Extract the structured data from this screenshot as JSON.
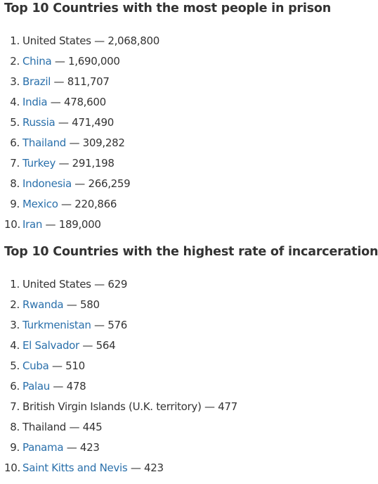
{
  "separator": " — ",
  "sections": [
    {
      "title": "Top 10 Countries with the most people in prison",
      "items": [
        {
          "rank": "1.",
          "name": "United States",
          "link": false,
          "value": "2,068,800"
        },
        {
          "rank": "2.",
          "name": "China",
          "link": true,
          "value": "1,690,000"
        },
        {
          "rank": "3.",
          "name": "Brazil",
          "link": true,
          "value": "811,707"
        },
        {
          "rank": "4.",
          "name": "India",
          "link": true,
          "value": "478,600"
        },
        {
          "rank": "5.",
          "name": "Russia",
          "link": true,
          "value": "471,490"
        },
        {
          "rank": "6.",
          "name": "Thailand",
          "link": true,
          "value": "309,282"
        },
        {
          "rank": "7.",
          "name": "Turkey",
          "link": true,
          "value": "291,198"
        },
        {
          "rank": "8.",
          "name": "Indonesia",
          "link": true,
          "value": "266,259"
        },
        {
          "rank": "9.",
          "name": "Mexico",
          "link": true,
          "value": "220,866"
        },
        {
          "rank": "10.",
          "name": "Iran",
          "link": true,
          "value": "189,000"
        }
      ]
    },
    {
      "title": "Top 10 Countries with the highest rate of incarceration",
      "items": [
        {
          "rank": "1.",
          "name": "United States",
          "link": false,
          "value": "629"
        },
        {
          "rank": "2.",
          "name": "Rwanda",
          "link": true,
          "value": "580"
        },
        {
          "rank": "3.",
          "name": "Turkmenistan",
          "link": true,
          "value": "576"
        },
        {
          "rank": "4.",
          "name": "El Salvador",
          "link": true,
          "value": "564"
        },
        {
          "rank": "5.",
          "name": "Cuba",
          "link": true,
          "value": "510"
        },
        {
          "rank": "6.",
          "name": "Palau",
          "link": true,
          "value": "478"
        },
        {
          "rank": "7.",
          "name": "British Virgin Islands (U.K. territory)",
          "link": false,
          "value": "477"
        },
        {
          "rank": "8.",
          "name": "Thailand",
          "link": false,
          "value": "445"
        },
        {
          "rank": "9.",
          "name": "Panama",
          "link": true,
          "value": "423"
        },
        {
          "rank": "10.",
          "name": "Saint Kitts and Nevis",
          "link": true,
          "value": "423"
        }
      ]
    }
  ]
}
